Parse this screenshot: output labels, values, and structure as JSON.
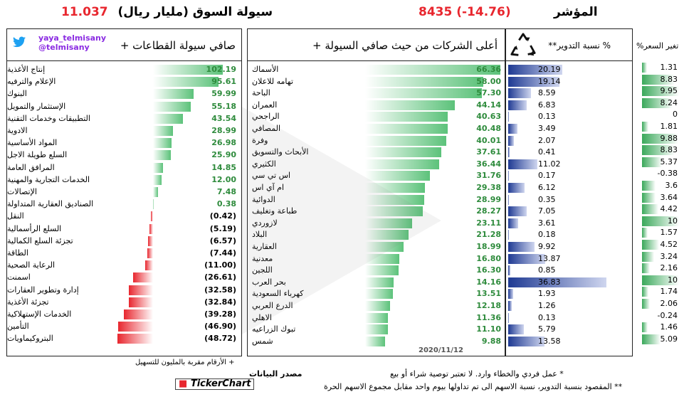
{
  "header": {
    "liquidity_title": "سيولة السوق (مليار ريال)",
    "liquidity_value": "11.037",
    "index_title": "المؤشر",
    "index_value": "8435 (-14.76)"
  },
  "sectors_panel": {
    "title": "صافي سيولة القطاعات +",
    "twitter_user": "yaya_telmisany",
    "twitter_handle": "@telmisany",
    "footnote": "+ الأرقام مقربة بالمليون للتسهيل"
  },
  "companies_panel": {
    "title": "أعلى الشركات من حيث صافي السيولة +",
    "date": "2020/11/12"
  },
  "turnover_panel": {
    "title": "% نسبة التدوير**"
  },
  "price_change_panel": {
    "title": "تغير السعر%"
  },
  "notes": {
    "note1": "* عمل فردي والخطاء وارد. لا تعتبر توصية شراء أو بيع",
    "note2": "** المقصود بنسبة التدوير، نسبة الاسهم الى تم تداولها بيوم واحد مقابل مجموع الاسهم الحرة"
  },
  "source": {
    "label": "مصدر البيانات",
    "brand": "TickerChart"
  },
  "colors": {
    "positive": "#5cc27a",
    "negative": "#e8262e",
    "turnover": "#1f3a93",
    "twitter": "#1da1f2"
  },
  "icons": {
    "recycle": "recycle-icon",
    "twitter": "twitter-bird-icon"
  },
  "chart_data": [
    {
      "type": "bar",
      "title": "صافي سيولة القطاعات +",
      "categories": [
        "إنتاج الأغذية",
        "الإعلام والترفيه",
        "البنوك",
        "الإستثمار والتمويل",
        "التطبيقات وخدمات التقنية",
        "الادوية",
        "المواد الأساسية",
        "السلع طويلة الاجل",
        "المرافق العامة",
        "الخدمات التجارية والمهنية",
        "الإتصالات",
        "الصناديق العقارية المتداولة",
        "النقل",
        "السلع الرأسمالية",
        "تجزئة السلع الكمالية",
        "الطاقة",
        "الرعاية الصحية",
        "اسمنت",
        "إدارة وتطوير العقارات",
        "تجزئة الأغذية",
        "الخدمات الإستهلاكية",
        "التأمين",
        "البتروكيماويات"
      ],
      "values": [
        102.19,
        95.61,
        59.99,
        55.18,
        43.54,
        28.99,
        26.98,
        25.9,
        14.85,
        12.0,
        7.48,
        0.38,
        -0.42,
        -5.19,
        -6.57,
        -7.44,
        -11.0,
        -26.61,
        -32.58,
        -32.84,
        -39.28,
        -46.9,
        -48.72
      ],
      "labels": [
        "102.19",
        "95.61",
        "59.99",
        "55.18",
        "43.54",
        "28.99",
        "26.98",
        "25.90",
        "14.85",
        "12.00",
        "7.48",
        "0.38",
        "(0.42)",
        "(5.19)",
        "(6.57)",
        "(7.44)",
        "(11.00)",
        "(26.61)",
        "(32.58)",
        "(32.84)",
        "(39.28)",
        "(46.90)",
        "(48.72)"
      ]
    },
    {
      "type": "bar",
      "title": "أعلى الشركات من حيث صافي السيولة +",
      "categories": [
        "الأسماك",
        "تهامه للاعلان",
        "الباحة",
        "العمران",
        "الراجحي",
        "المصافي",
        "وفرة",
        "الأبحاث والتسويق",
        "الكثيري",
        "اس تي سي",
        "ام آي اس",
        "الدوائية",
        "طباعة وتغليف",
        "لازوردي",
        "البلاد",
        "العقارية",
        "معدنية",
        "اللجين",
        "بحر العرب",
        "كهرباء السعودية",
        "الدرع العربي",
        "الاهلي",
        "تبوك الزراعيه",
        "شمس"
      ],
      "values": [
        66.36,
        58.0,
        57.3,
        44.14,
        40.63,
        40.48,
        40.01,
        37.61,
        36.44,
        31.76,
        29.38,
        28.99,
        28.27,
        23.11,
        21.28,
        18.99,
        16.8,
        16.3,
        14.16,
        13.51,
        12.18,
        11.36,
        11.1,
        9.88
      ],
      "labels": [
        "66.36",
        "58.00",
        "57.30",
        "44.14",
        "40.63",
        "40.48",
        "40.01",
        "37.61",
        "36.44",
        "31.76",
        "29.38",
        "28.99",
        "28.27",
        "23.11",
        "21.28",
        "18.99",
        "16.80",
        "16.30",
        "14.16",
        "13.51",
        "12.18",
        "11.36",
        "11.10",
        "9.88"
      ]
    },
    {
      "type": "bar",
      "title": "% نسبة التدوير**",
      "values": [
        20.19,
        19.14,
        8.59,
        6.83,
        0.13,
        3.49,
        2.07,
        0.41,
        11.02,
        0.17,
        6.12,
        0.35,
        7.05,
        3.61,
        0.18,
        9.92,
        13.87,
        0.85,
        36.83,
        1.93,
        1.26,
        0.13,
        5.79,
        13.58
      ],
      "labels": [
        "20.19",
        "19.14",
        "8.59",
        "6.83",
        "0.13",
        "3.49",
        "2.07",
        "0.41",
        "11.02",
        "0.17",
        "6.12",
        "0.35",
        "7.05",
        "3.61",
        "0.18",
        "9.92",
        "13.87",
        "0.85",
        "36.83",
        "1.93",
        "1.26",
        "0.13",
        "5.79",
        "13.58"
      ]
    },
    {
      "type": "bar",
      "title": "تغير السعر%",
      "values": [
        1.31,
        8.83,
        9.95,
        8.24,
        0,
        1.81,
        9.88,
        8.83,
        5.37,
        -0.38,
        3.6,
        3.64,
        4.42,
        10,
        1.57,
        4.52,
        3.24,
        2.16,
        10,
        1.74,
        2.06,
        -0.24,
        1.46,
        5.09
      ],
      "labels": [
        "1.31",
        "8.83",
        "9.95",
        "8.24",
        "0",
        "1.81",
        "9.88",
        "8.83",
        "5.37",
        "-0.38",
        "3.6",
        "3.64",
        "4.42",
        "10",
        "1.57",
        "4.52",
        "3.24",
        "2.16",
        "10",
        "1.74",
        "2.06",
        "-0.24",
        "1.46",
        "5.09"
      ]
    }
  ]
}
